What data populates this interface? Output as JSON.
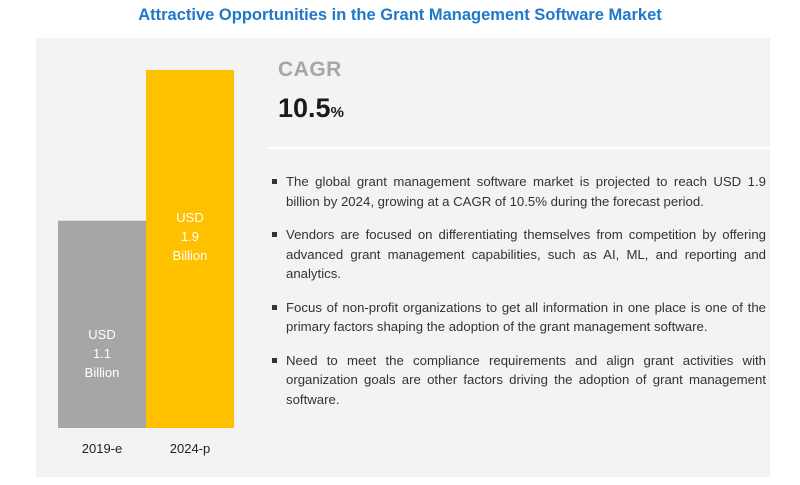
{
  "title": "Attractive Opportunities in the Grant Management Software Market",
  "chart_data": {
    "type": "bar",
    "categories": [
      "2019-e",
      "2024-p"
    ],
    "values": [
      1.1,
      1.9
    ],
    "value_labels": [
      [
        "USD",
        "1.1",
        "Billion"
      ],
      [
        "USD",
        "1.9",
        "Billion"
      ]
    ],
    "colors": [
      "#a6a6a6",
      "#ffc000"
    ],
    "ylim": [
      0,
      1.9
    ],
    "grid": false
  },
  "cagr": {
    "label": "CAGR",
    "value": "10.5",
    "unit": "%"
  },
  "bullets": [
    "The global grant management software market is projected to reach USD 1.9 billion by 2024, growing at a CAGR of 10.5% during the forecast period.",
    "Vendors are focused on differentiating themselves from competition by offering advanced grant management capabilities, such as AI, ML, and reporting and analytics.",
    "Focus of non-profit organizations to get all information in one place is one of the primary factors shaping the adoption of the grant management software.",
    "Need to meet the compliance requirements and align grant activities with organization goals are other factors driving the adoption of grant management software."
  ]
}
